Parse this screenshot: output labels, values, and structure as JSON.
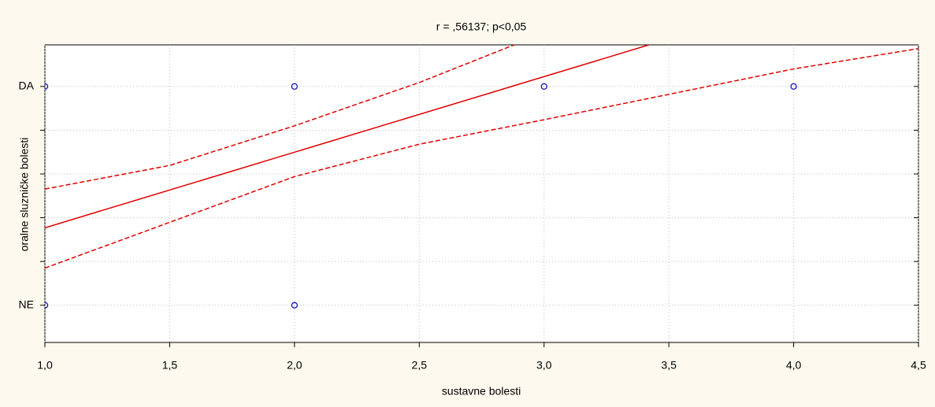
{
  "chart_data": {
    "type": "scatter",
    "title": "r = ,56137; p<0,05",
    "x_label": "sustavne bolesti",
    "y_label": "oralne sluzničke bolesti",
    "xlim": [
      1,
      4.5
    ],
    "xticks": [
      {
        "value": 1,
        "label": "1,0"
      },
      {
        "value": 1.5,
        "label": "1,5"
      },
      {
        "value": 2,
        "label": "2,0"
      },
      {
        "value": 2.5,
        "label": "2,5"
      },
      {
        "value": 3,
        "label": "3,0"
      },
      {
        "value": 3.5,
        "label": "3,5"
      },
      {
        "value": 4,
        "label": "4,0"
      },
      {
        "value": 4.5,
        "label": "4,5"
      }
    ],
    "ylim": [
      -0.17,
      1.19
    ],
    "yticks": [
      {
        "value": 0,
        "label": "NE"
      },
      {
        "value": 0.2,
        "label": null
      },
      {
        "value": 0.4,
        "label": null
      },
      {
        "value": 0.6,
        "label": null
      },
      {
        "value": 0.8,
        "label": null
      },
      {
        "value": 1,
        "label": "DA"
      }
    ],
    "grid": true,
    "series": [
      {
        "kind": "points",
        "color": "#0000c0",
        "x": [
          1,
          2,
          3,
          4,
          1,
          2
        ],
        "values": [
          1,
          1,
          1,
          1,
          0,
          0
        ]
      },
      {
        "kind": "line",
        "style": "solid",
        "color": "#e00000",
        "x": [
          1,
          3.42
        ],
        "values": [
          0.354,
          1.19
        ]
      },
      {
        "kind": "line",
        "style": "dashed",
        "color": "#e00000",
        "x": [
          1,
          1.5,
          2,
          2.5,
          2.88
        ],
        "values": [
          0.531,
          0.639,
          0.82,
          1.018,
          1.19
        ]
      },
      {
        "kind": "line",
        "style": "dashed",
        "color": "#e00000",
        "x": [
          1,
          1.5,
          2,
          2.5,
          3,
          3.5,
          4,
          4.5
        ],
        "values": [
          0.17,
          0.379,
          0.588,
          0.736,
          0.848,
          0.964,
          1.08,
          1.173
        ]
      }
    ]
  }
}
